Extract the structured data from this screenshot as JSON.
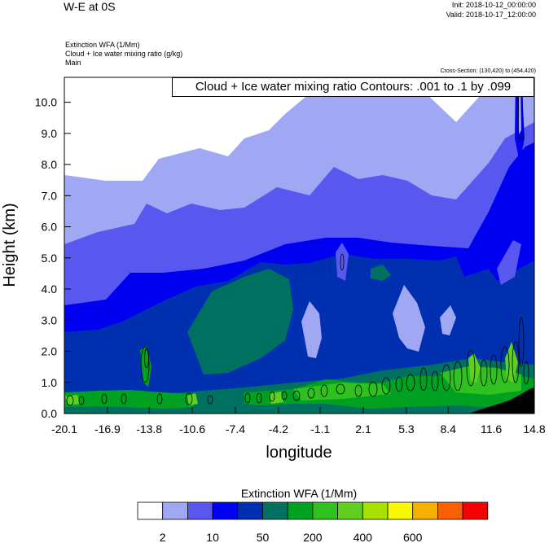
{
  "header": {
    "title": "W-E at 0S",
    "init": "Init: 2018-10-12_00:00:00",
    "valid": "Valid: 2018-10-17_12:00:00",
    "field1": "Extinction WFA   (1/Mm)",
    "field2": "Cloud + Ice water mixing ratio   (g/kg)",
    "field3": "Main",
    "cross_section": "Cross-Section: (130,420) to (454,420)",
    "contour_info": "Cloud + Ice water mixing ratio Contours: .001 to .1 by .099"
  },
  "chart_data": {
    "type": "heatmap",
    "title": "W-E at 0S",
    "xlabel": "longitude",
    "ylabel": "Height (km)",
    "xlim": [
      -20.1,
      14.8
    ],
    "ylim": [
      0.0,
      10.8
    ],
    "x_ticks": [
      "-20.1",
      "-16.9",
      "-13.8",
      "-10.6",
      "-7.4",
      "-4.2",
      "-1.1",
      "2.1",
      "5.3",
      "8.4",
      "11.6",
      "14.8"
    ],
    "y_ticks": [
      "0.0",
      "1.0",
      "2.0",
      "3.0",
      "4.0",
      "5.0",
      "6.0",
      "7.0",
      "8.0",
      "9.0",
      "10.0"
    ],
    "colorbar": {
      "label": "Extinction WFA  (1/Mm)",
      "colors": [
        "#ffffff",
        "#a0a8f4",
        "#5858f0",
        "#0000f0",
        "#0030b0",
        "#007060",
        "#00a020",
        "#30c020",
        "#60d020",
        "#a8e000",
        "#f8f800",
        "#f8b000",
        "#f86000",
        "#f80000"
      ],
      "labels": [
        "2",
        "10",
        "50",
        "200",
        "400",
        "600"
      ]
    }
  }
}
